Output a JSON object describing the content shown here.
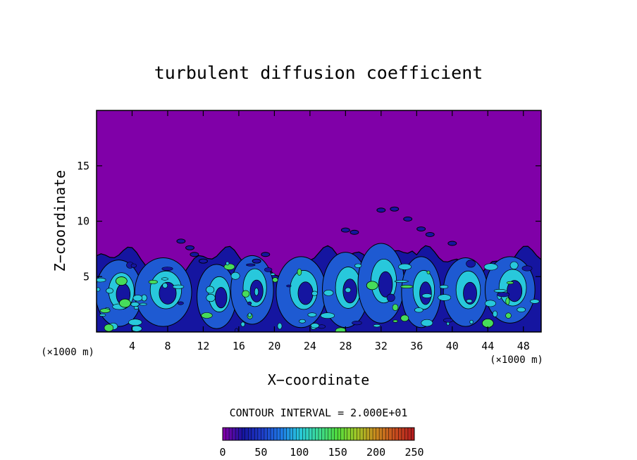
{
  "chart_data": {
    "type": "heatmap",
    "title": "turbulent diffusion coefficient",
    "xlabel": "X−coordinate",
    "ylabel": "Z−coordinate",
    "x_unit_left": "(×1000 m)",
    "x_unit_right": "(×1000 m)",
    "xlim": [
      0,
      50
    ],
    "ylim": [
      0,
      20
    ],
    "x_ticks": [
      4,
      8,
      12,
      16,
      20,
      24,
      28,
      32,
      36,
      40,
      44,
      48
    ],
    "x_tick_labels": [
      "4",
      "8",
      "12",
      "16",
      "20",
      "24",
      "28",
      "32",
      "36",
      "40",
      "44",
      "48"
    ],
    "y_ticks": [
      5,
      10,
      15
    ],
    "y_tick_labels": [
      "5",
      "10",
      "15"
    ],
    "background_value": 0,
    "turbulent_layer_top_approx": 7,
    "contour_interval_text": "CONTOUR INTERVAL = 2.000E+01",
    "contour_interval": 20,
    "colorbar": {
      "min": 0,
      "max": 250,
      "tick_values": [
        0,
        50,
        100,
        150,
        200,
        250
      ],
      "tick_labels": [
        "0",
        "50",
        "100",
        "150",
        "200",
        "250"
      ],
      "colors": [
        "#7f00a8",
        "#1515a0",
        "#1e3cc8",
        "#1e78e6",
        "#28c8dc",
        "#3cdc96",
        "#50dc3c",
        "#a0c828",
        "#c88c1e",
        "#c8501e",
        "#b41e1e"
      ]
    },
    "plot_colors": {
      "background": "#8000a8",
      "low": "#1515a0",
      "mid": "#1e5ad2",
      "high": "#28c8dc",
      "peak": "#46dc5a",
      "contour": "#000000"
    }
  }
}
